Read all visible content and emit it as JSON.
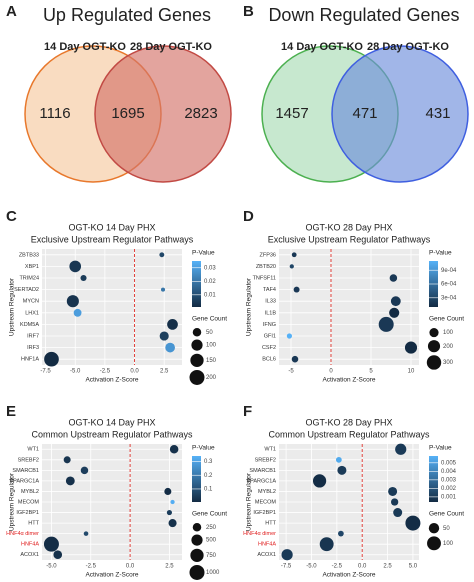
{
  "chart_data": [
    {
      "type": "venn",
      "panel_label": "A",
      "title": "Up Regulated Genes",
      "sets": [
        "14 Day OGT-KO",
        "28 Day OGT-KO"
      ],
      "colors": [
        "#f6c9a0",
        "#d4736a"
      ],
      "edge_colors": [
        "#e8782c",
        "#c24a44"
      ],
      "values": [
        1116,
        1695,
        2823
      ]
    },
    {
      "type": "venn",
      "panel_label": "B",
      "title": "Down Regulated Genes",
      "sets": [
        "14 Day OGT-KO",
        "28 Day OGT-KO"
      ],
      "colors": [
        "#a9dbb5",
        "#6f8fdc"
      ],
      "edge_colors": [
        "#4cb050",
        "#3f5fe0"
      ],
      "values": [
        1457,
        471,
        431
      ]
    },
    {
      "type": "dot",
      "panel_label": "C",
      "title": "OGT-KO 14 Day PHX",
      "subtitle": "Exclusive Upstream Regulator Pathways",
      "xlabel": "Activation Z-Score",
      "ylabel": "Upstream Regulator",
      "categories": [
        "ZBTB33",
        "XBP1",
        "TRIM24",
        "SERTAD2",
        "MYCN",
        "LHX1",
        "KDM5A",
        "IRF7",
        "IRF3",
        "HNF1A"
      ],
      "label_colors": [
        "#333",
        "#333",
        "#333",
        "#333",
        "#333",
        "#333",
        "#333",
        "#333",
        "#333",
        "#333"
      ],
      "values": [
        2.3,
        -5.0,
        -4.3,
        2.4,
        -5.2,
        -4.8,
        3.2,
        2.5,
        3.0,
        -7.0
      ],
      "gene_counts": [
        10,
        110,
        20,
        5,
        120,
        40,
        90,
        60,
        70,
        190
      ],
      "p_values": [
        0.008,
        0.004,
        0.005,
        0.02,
        0.003,
        0.03,
        0.002,
        0.006,
        0.028,
        0.001
      ],
      "xlim": [
        -7.8,
        4
      ],
      "xticks": [
        -7.5,
        {
          "value": -5,
          "label": "-5.0"
        },
        -2.5,
        {
          "value": 0,
          "label": "0.0"
        },
        2.5
      ],
      "vline": 0,
      "color_title": "P-Value",
      "color_lim": [
        0.001,
        0.035
      ],
      "color_ticks": [
        0.01,
        0.02,
        0.03
      ],
      "color_low": "#132b43",
      "color_high": "#56b1f7",
      "size_title": "Gene Count",
      "size_lim": [
        0,
        200
      ],
      "size_ticks": [
        50,
        100,
        150,
        200
      ]
    },
    {
      "type": "dot",
      "panel_label": "D",
      "title": "OGT-KO 28 Day PHX",
      "subtitle": "Exclusive Upstream Regulator Pathways",
      "xlabel": "Activation Z-Score",
      "ylabel": "Upstream Regulator",
      "categories": [
        "ZFP36",
        "ZBTB20",
        "TNFSF11",
        "TAF4",
        "IL33",
        "IL1B",
        "IFNG",
        "GFI1",
        "CSF2",
        "BCL6"
      ],
      "label_colors": [
        "#333",
        "#333",
        "#333",
        "#333",
        "#333",
        "#333",
        "#333",
        "#333",
        "#333",
        "#333"
      ],
      "values": [
        -4.6,
        -4.9,
        7.8,
        -4.3,
        8.1,
        7.9,
        6.9,
        -5.2,
        10.0,
        -4.5
      ],
      "gene_counts": [
        15,
        10,
        60,
        30,
        120,
        130,
        330,
        20,
        200,
        40
      ],
      "p_values": [
        0.0002,
        0.0003,
        0.0002,
        0.0002,
        0.0002,
        0.0001,
        0.0002,
        0.0011,
        0.0001,
        0.0002
      ],
      "xlim": [
        -6.5,
        11
      ],
      "xticks": [
        -5,
        0,
        5,
        10
      ],
      "vline": 0,
      "color_title": "P-Value",
      "color_lim": [
        0.0001,
        0.0011
      ],
      "color_ticks": [
        {
          "value": 0.0003,
          "label": "3e-04"
        },
        {
          "value": 0.0006,
          "label": "6e-04"
        },
        {
          "value": 0.0009,
          "label": "9e-04"
        }
      ],
      "color_low": "#132b43",
      "color_high": "#56b1f7",
      "size_title": "Gene Count",
      "size_lim": [
        0,
        330
      ],
      "size_ticks": [
        100,
        200,
        300
      ]
    },
    {
      "type": "dot",
      "panel_label": "E",
      "title": "OGT-KO 14 Day PHX",
      "subtitle": "Common Upstream Regulator Pathways",
      "xlabel": "Activation Z-Score",
      "ylabel": "Upstream Regulator",
      "categories": [
        "WT1",
        "SREBF2",
        "SMARCB1",
        "PPARGC1A",
        "MYBL2",
        "MECOM",
        "IGF2BP1",
        "HTT",
        "HNF4α dimer",
        "HNF4A",
        "ACOX1"
      ],
      "label_colors": [
        "#333",
        "#333",
        "#333",
        "#333",
        "#333",
        "#333",
        "#333",
        "#333",
        "#e02020",
        "#e02020",
        "#333"
      ],
      "values": [
        2.8,
        -4.0,
        -2.9,
        -3.8,
        2.4,
        2.7,
        2.5,
        2.7,
        -2.8,
        -5.0,
        -4.6
      ],
      "gene_counts": [
        250,
        150,
        180,
        280,
        150,
        30,
        60,
        220,
        40,
        1000,
        260
      ],
      "p_values": [
        0.02,
        0.03,
        0.05,
        0.02,
        0.01,
        0.33,
        0.05,
        0.02,
        0.08,
        0.01,
        0.02
      ],
      "xlim": [
        -5.6,
        3.3
      ],
      "xticks": [
        {
          "value": -5,
          "label": "-5.0"
        },
        -2.5,
        {
          "value": 0,
          "label": "0.0"
        },
        2.5
      ],
      "vline": 0,
      "color_title": "P-Value",
      "color_lim": [
        0.005,
        0.34
      ],
      "color_ticks": [
        0.1,
        0.2,
        0.3
      ],
      "color_low": "#132b43",
      "color_high": "#56b1f7",
      "size_title": "Gene Count",
      "size_lim": [
        0,
        1000
      ],
      "size_ticks": [
        250,
        500,
        750,
        1000
      ]
    },
    {
      "type": "dot",
      "panel_label": "F",
      "title": "OGT-KO 28 Day PHX",
      "subtitle": "Common Upstream Regulator Pathways",
      "xlabel": "Activation Z-Score",
      "ylabel": "Upstream Regulator",
      "categories": [
        "WT1",
        "SREBF2",
        "SMARCB1",
        "PPARGC1A",
        "MYBL2",
        "MECOM",
        "IGF2BP1",
        "HTT",
        "HNF4α dimer",
        "HNF4A",
        "ACOX1"
      ],
      "label_colors": [
        "#333",
        "#333",
        "#333",
        "#333",
        "#333",
        "#333",
        "#333",
        "#333",
        "#e02020",
        "#e02020",
        "#333"
      ],
      "values": [
        3.8,
        -2.3,
        -2.0,
        -4.2,
        3.0,
        3.2,
        3.5,
        5.0,
        -2.1,
        -3.5,
        -7.4
      ],
      "gene_counts": [
        60,
        10,
        35,
        90,
        35,
        20,
        35,
        120,
        10,
        100,
        60
      ],
      "p_values": [
        0.001,
        0.0055,
        0.001,
        0.0005,
        0.001,
        0.001,
        0.001,
        0.0005,
        0.0015,
        0.0008,
        0.001
      ],
      "xlim": [
        -8.2,
        5.6
      ],
      "xticks": [
        -7.5,
        {
          "value": -5,
          "label": "-5.0"
        },
        -2.5,
        {
          "value": 0,
          "label": "0.0"
        },
        2.5,
        {
          "value": 5,
          "label": "5.0"
        }
      ],
      "vline": 0,
      "color_title": "P-Value",
      "color_lim": [
        0.0004,
        0.0058
      ],
      "color_ticks": [
        0.001,
        0.002,
        0.003,
        0.004,
        0.005
      ],
      "color_low": "#132b43",
      "color_high": "#56b1f7",
      "size_title": "Gene Count",
      "size_lim": [
        0,
        120
      ],
      "size_ticks": [
        50,
        100
      ]
    }
  ]
}
